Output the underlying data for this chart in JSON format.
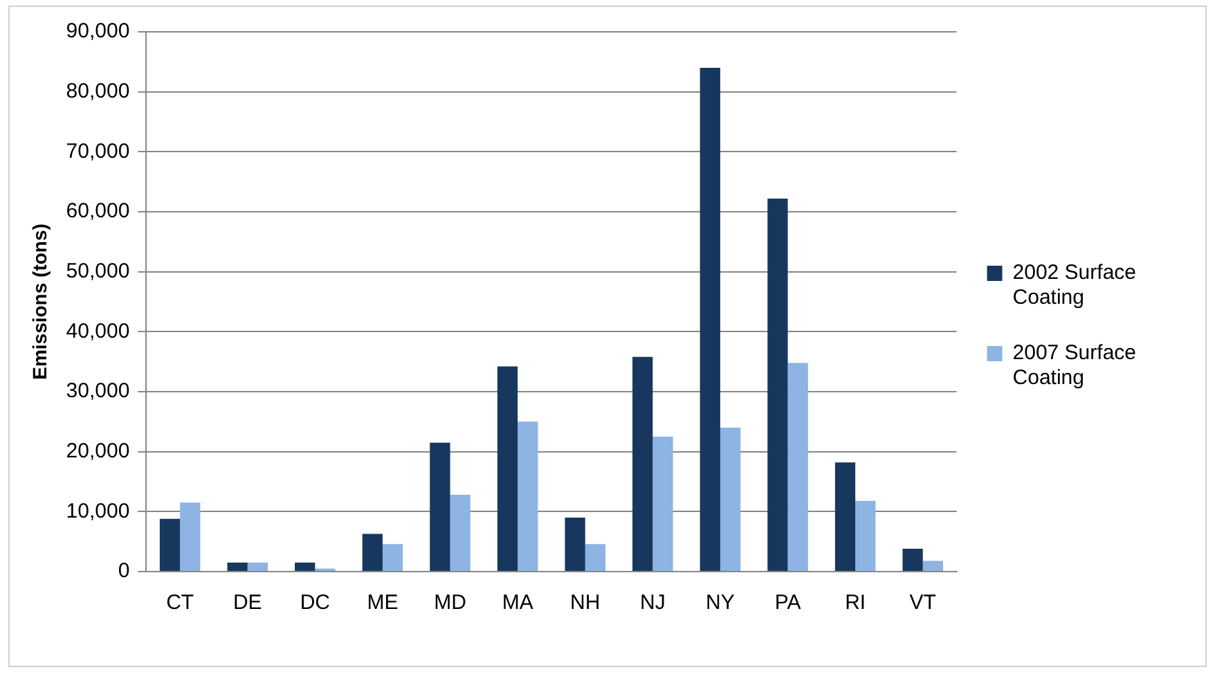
{
  "chart_data": {
    "type": "bar",
    "ylabel": "Emissions (tons)",
    "categories": [
      "CT",
      "DE",
      "DC",
      "ME",
      "MD",
      "MA",
      "NH",
      "NJ",
      "NY",
      "PA",
      "RI",
      "VT"
    ],
    "series": [
      {
        "name": "2002 Surface Coating",
        "color": "#17375e",
        "values": [
          8800,
          1500,
          1500,
          6300,
          21500,
          34200,
          9000,
          35800,
          84000,
          62200,
          18200,
          3800
        ]
      },
      {
        "name": "2007 Surface Coating",
        "color": "#8db4e2",
        "values": [
          11500,
          1500,
          500,
          4600,
          12800,
          25000,
          4600,
          22500,
          24000,
          34800,
          11800,
          1800
        ]
      }
    ],
    "ylim": [
      0,
      90000
    ],
    "yticks": [
      0,
      {
        "value": 10000,
        "label": "10,000"
      },
      {
        "value": 20000,
        "label": "20,000"
      },
      {
        "value": 30000,
        "label": "30,000"
      },
      {
        "value": 40000,
        "label": "40,000"
      },
      {
        "value": 50000,
        "label": "50,000"
      },
      {
        "value": 60000,
        "label": "60,000"
      },
      {
        "value": 70000,
        "label": "70,000"
      },
      {
        "value": 80000,
        "label": "80,000"
      },
      {
        "value": 90000,
        "label": "90,000"
      }
    ],
    "grid": "y",
    "legend": "right"
  }
}
